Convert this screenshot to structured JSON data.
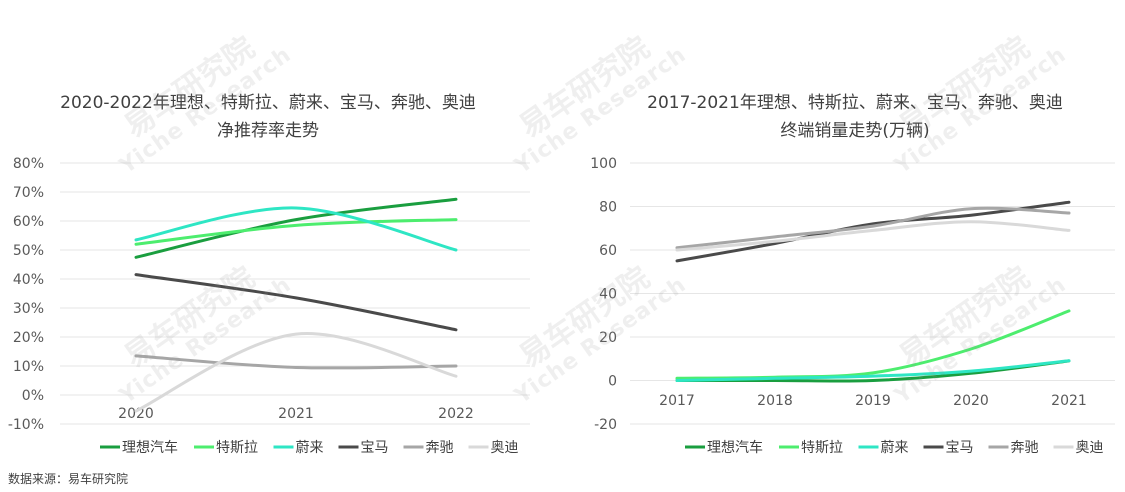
{
  "chart_data": [
    {
      "type": "line",
      "title_lines": [
        "2020-2022年理想、特斯拉、蔚来、宝马、奔驰、奥迪",
        "净推荐率走势"
      ],
      "categories": [
        "2020",
        "2021",
        "2022"
      ],
      "y_ticks": [
        "80%",
        "70%",
        "60%",
        "50%",
        "40%",
        "30%",
        "20%",
        "10%",
        "0%",
        "-10%"
      ],
      "ylim": [
        -0.1,
        0.8
      ],
      "grid": true,
      "legend_position": "bottom",
      "series": [
        {
          "name": "理想汽车",
          "color": "#1a9e3f",
          "values": [
            0.475,
            0.605,
            0.675
          ]
        },
        {
          "name": "特斯拉",
          "color": "#4ded6e",
          "values": [
            0.52,
            0.585,
            0.605
          ]
        },
        {
          "name": "蔚来",
          "color": "#2ee6c4",
          "values": [
            0.535,
            0.645,
            0.5
          ]
        },
        {
          "name": "宝马",
          "color": "#4a4a4a",
          "values": [
            0.415,
            0.335,
            0.225
          ]
        },
        {
          "name": "奔驰",
          "color": "#a6a6a6",
          "values": [
            0.135,
            0.095,
            0.1
          ]
        },
        {
          "name": "奥迪",
          "color": "#d9d9d9",
          "values": [
            -0.055,
            0.21,
            0.065
          ]
        }
      ]
    },
    {
      "type": "line",
      "title_lines": [
        "2017-2021年理想、特斯拉、蔚来、宝马、奔驰、奥迪",
        "终端销量走势(万辆)"
      ],
      "categories": [
        "2017",
        "2018",
        "2019",
        "2020",
        "2021"
      ],
      "y_ticks": [
        "100",
        "80",
        "60",
        "40",
        "20",
        "0",
        "-20"
      ],
      "ylim": [
        -20,
        100
      ],
      "grid": true,
      "legend_position": "bottom",
      "series": [
        {
          "name": "理想汽车",
          "color": "#1a9e3f",
          "values": [
            0,
            0,
            0,
            3.3,
            9.0
          ]
        },
        {
          "name": "特斯拉",
          "color": "#4ded6e",
          "values": [
            1.0,
            1.5,
            3.5,
            14.5,
            32.0
          ]
        },
        {
          "name": "蔚来",
          "color": "#2ee6c4",
          "values": [
            0,
            1.0,
            2.0,
            4.3,
            9.1
          ]
        },
        {
          "name": "宝马",
          "color": "#4a4a4a",
          "values": [
            55.0,
            63.0,
            72.0,
            76.0,
            82.0
          ]
        },
        {
          "name": "奔驰",
          "color": "#a6a6a6",
          "values": [
            61.0,
            66.0,
            71.0,
            79.0,
            77.0
          ]
        },
        {
          "name": "奥迪",
          "color": "#d9d9d9",
          "values": [
            60.0,
            64.0,
            69.0,
            73.0,
            69.0
          ]
        }
      ]
    }
  ],
  "source_text": "数据来源：易车研究院",
  "watermark": {
    "cn": "易车研究院",
    "en": "Yiche Research"
  }
}
